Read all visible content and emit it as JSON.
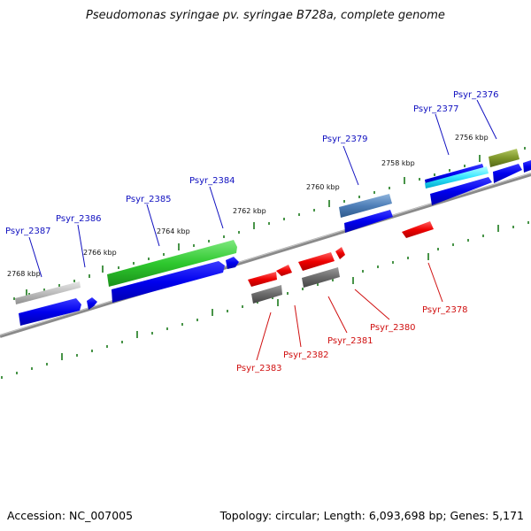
{
  "title": "Pseudomonas syringae pv. syringae B728a, complete genome",
  "footer": {
    "accession": "Accession: NC_007005",
    "summary": "Topology: circular; Length: 6,093,698 bp; Genes: 5,171"
  },
  "colors": {
    "forward_label": "#1010c0",
    "reverse_label": "#d01010",
    "tick": "#1a7a1a",
    "backbone": "#8a8a8a"
  },
  "scale_labels": [
    "2768 kbp",
    "2766 kbp",
    "2764 kbp",
    "2762 kbp",
    "2760 kbp",
    "2758 kbp",
    "2756 kbp"
  ],
  "forward_labels": [
    "Psyr_2387",
    "Psyr_2386",
    "Psyr_2385",
    "Psyr_2384",
    "Psyr_2379",
    "Psyr_2377",
    "Psyr_2376"
  ],
  "reverse_labels": [
    "Psyr_2383",
    "Psyr_2382",
    "Psyr_2381",
    "Psyr_2380",
    "Psyr_2378"
  ]
}
